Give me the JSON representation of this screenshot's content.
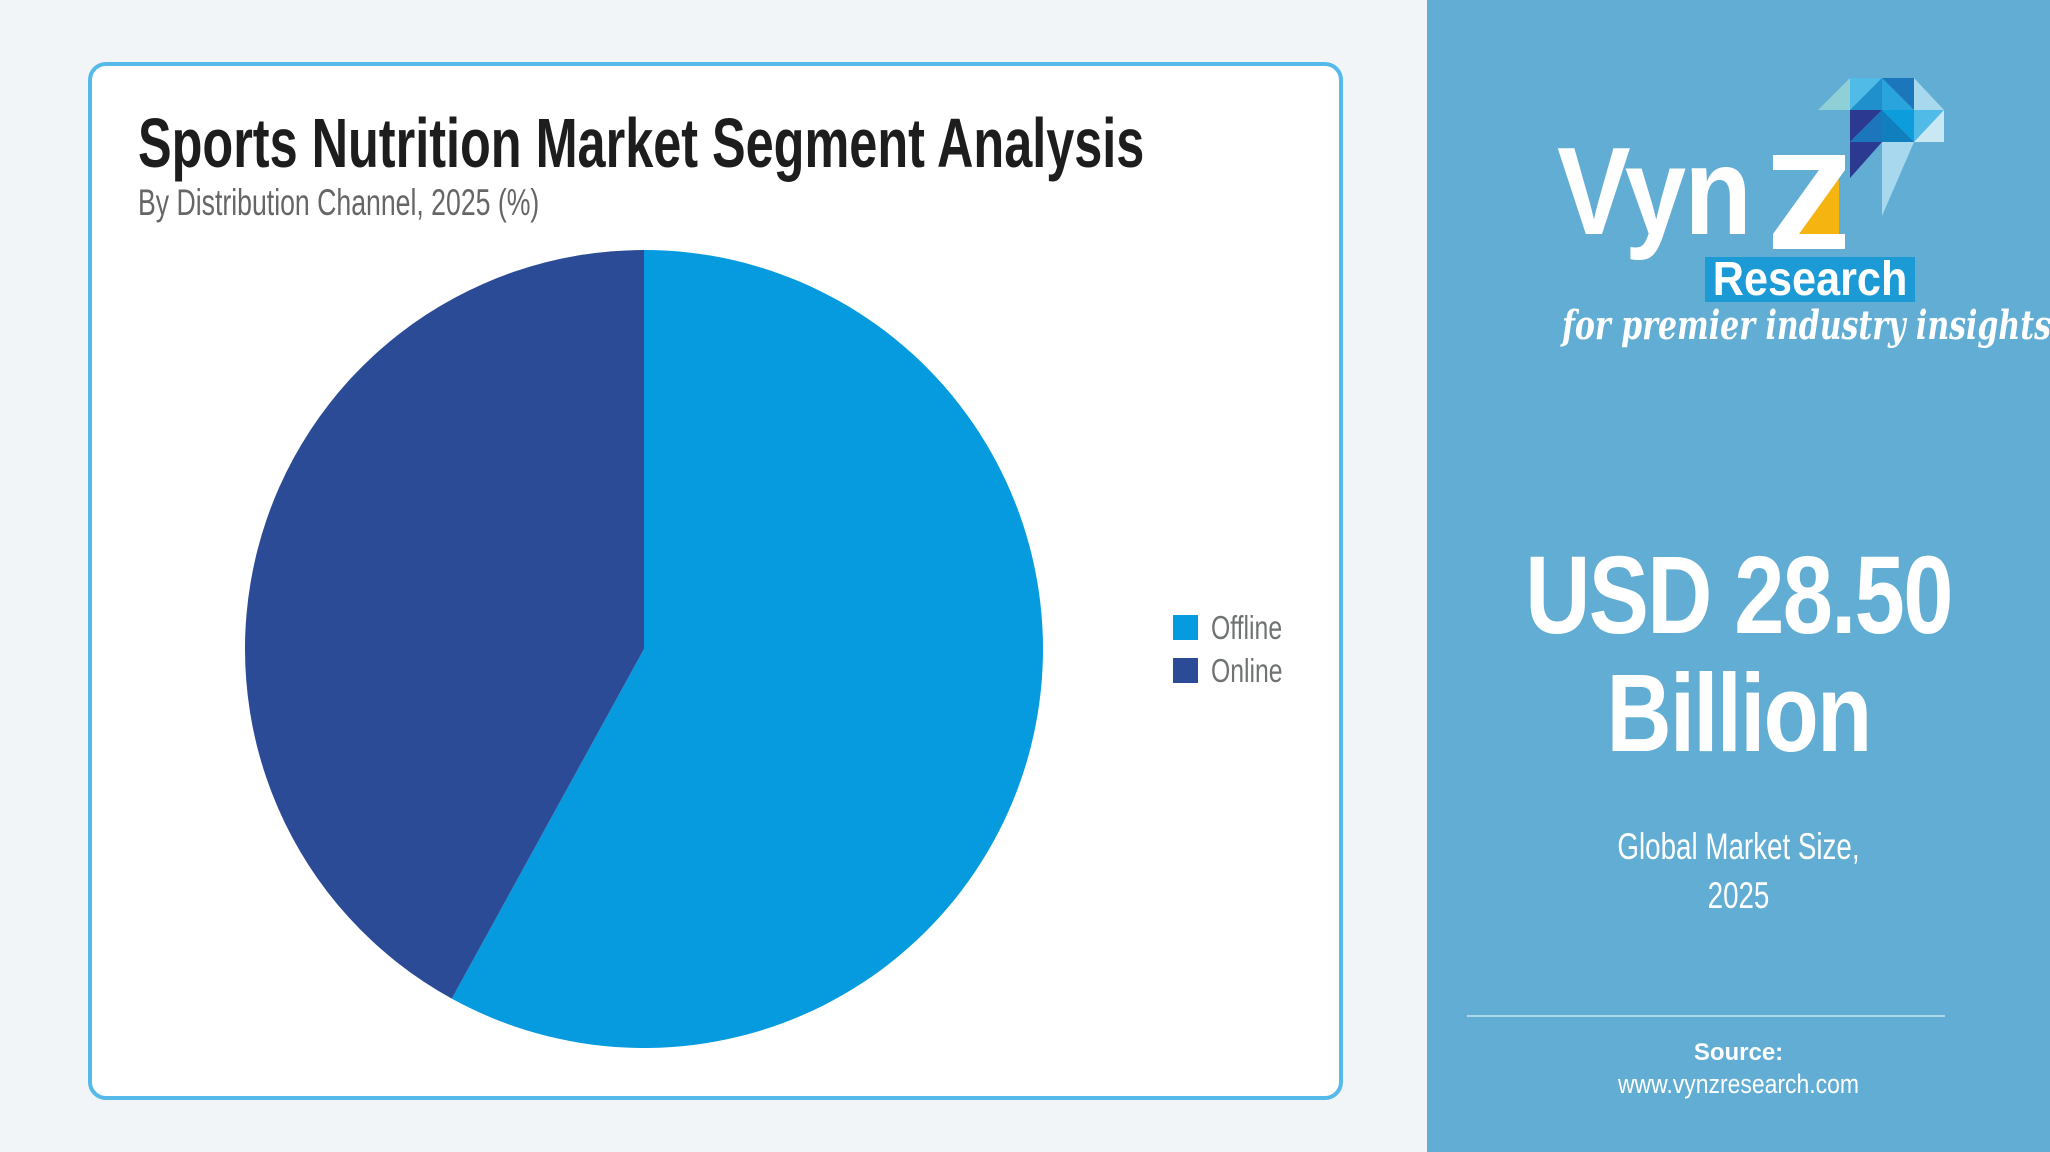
{
  "header": {
    "title": "Sports Nutrition Market Segment Analysis",
    "subtitle": "By Distribution Channel, 2025 (%)"
  },
  "chart_data": {
    "type": "pie",
    "title": "Sports Nutrition Market Segment Analysis",
    "subtitle": "By Distribution Channel, 2025 (%)",
    "unit": "%",
    "start_angle_deg": 0,
    "legend_position": "right",
    "data_labels_shown": false,
    "segments": [
      {
        "label": "Offline",
        "value": 58,
        "color": "#069ade"
      },
      {
        "label": "Online",
        "value": 42,
        "color": "#2b4b96"
      }
    ]
  },
  "sidebar": {
    "logo": {
      "brand": "VynZ",
      "brand_prefix": "Vyn",
      "brand_z": "Z",
      "subbrand": "Research",
      "tagline": "for premier industry insights"
    },
    "market_size": {
      "line1": "USD 28.50",
      "line2": "Billion",
      "caption_line1": "Global Market Size,",
      "caption_line2": "2025"
    },
    "source": {
      "label": "Source:",
      "url": "www.vynzresearch.com"
    }
  },
  "colors": {
    "offline_blue": "#069ade",
    "online_blue": "#2b4b96",
    "card_border": "#55bae9",
    "page_bg": "#f1f5f8",
    "sidebar_bg": "#61add3",
    "research_band_bg": "#1c9ad6",
    "logo_yellow": "#f6b411",
    "title_text": "#1d1d1d",
    "muted_text": "#666666"
  }
}
